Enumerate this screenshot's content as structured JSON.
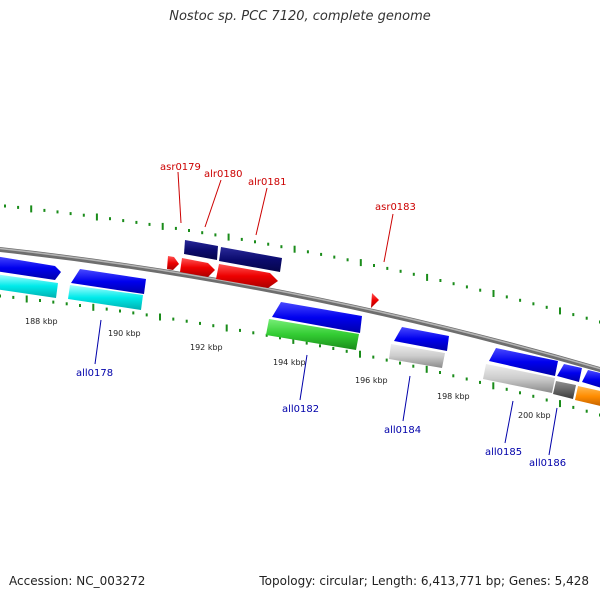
{
  "title": "Nostoc sp. PCC 7120, complete genome",
  "footer": {
    "accession": "Accession: NC_003272",
    "summary": "Topology: circular; Length: 6,413,771 bp; Genes: 5,428"
  },
  "colors": {
    "backbone": "#808080",
    "tick": "#1a8c1a",
    "forward_label": "#cc0000",
    "reverse_label": "#0000aa",
    "ruler_label": "#222222"
  },
  "ruler_labels": [
    "188 kbp",
    "190 kbp",
    "192 kbp",
    "194 kbp",
    "196 kbp",
    "198 kbp",
    "200 kbp"
  ],
  "gene_labels": [
    {
      "text": "asr0179",
      "strand": "forward"
    },
    {
      "text": "alr0180",
      "strand": "forward"
    },
    {
      "text": "alr0181",
      "strand": "forward"
    },
    {
      "text": "asr0183",
      "strand": "forward"
    },
    {
      "text": "all0178",
      "strand": "reverse"
    },
    {
      "text": "all0182",
      "strand": "reverse"
    },
    {
      "text": "all0184",
      "strand": "reverse"
    },
    {
      "text": "all0185",
      "strand": "reverse"
    },
    {
      "text": "all0186",
      "strand": "reverse"
    }
  ]
}
